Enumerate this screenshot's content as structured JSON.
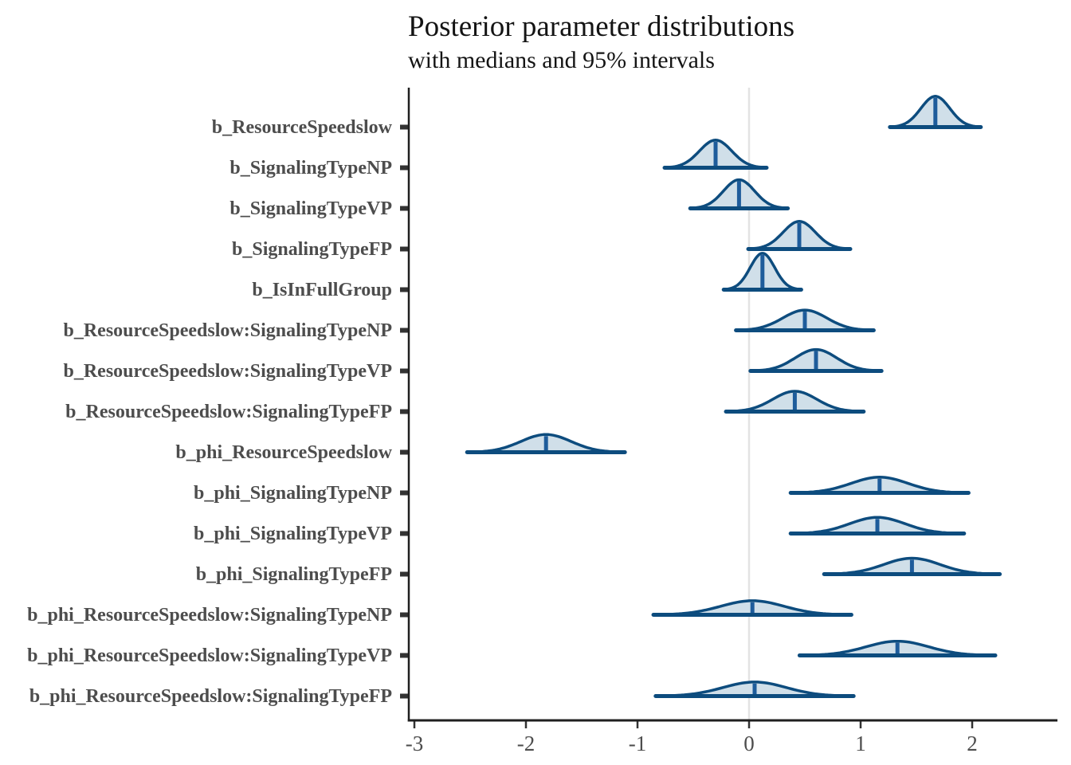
{
  "chart_data": {
    "type": "area",
    "subtype": "posterior-density-intervals",
    "title": "Posterior parameter distributions",
    "subtitle": "with medians and 95% intervals",
    "xlabel": "",
    "ylabel": "",
    "x_ticks": [
      -3,
      -2,
      -1,
      0,
      1,
      2
    ],
    "x_range": [
      -3.05,
      2.76
    ],
    "zero_reference_line": 0,
    "legend": "none",
    "grid": "zero-line-only",
    "style": {
      "fill_color": "#d0dfe9",
      "outline_color": "#0d4c7e",
      "median_color": "#1e5c9b",
      "gridline_color": "#e3e3e3",
      "axis_color": "#1f1f1f",
      "tick_color": "#333333",
      "tick_label_color": "#4d4d4d",
      "y_label_color": "#4d4d4d",
      "title_color": "#141414",
      "background": "#ffffff"
    },
    "parameters": [
      {
        "name": "b_ResourceSpeedslow",
        "median": 1.67,
        "sd": 0.13,
        "ci_low": 1.42,
        "ci_high": 1.92,
        "x_min": 1.27,
        "x_max": 2.07
      },
      {
        "name": "b_SignalingTypeNP",
        "median": -0.3,
        "sd": 0.145,
        "ci_low": -0.58,
        "ci_high": -0.02,
        "x_min": -0.75,
        "x_max": 0.15
      },
      {
        "name": "b_SignalingTypeVP",
        "median": -0.09,
        "sd": 0.14,
        "ci_low": -0.36,
        "ci_high": 0.18,
        "x_min": -0.52,
        "x_max": 0.34
      },
      {
        "name": "b_SignalingTypeFP",
        "median": 0.45,
        "sd": 0.145,
        "ci_low": 0.17,
        "ci_high": 0.73,
        "x_min": 0.0,
        "x_max": 0.9
      },
      {
        "name": "b_IsInFullGroup",
        "median": 0.12,
        "sd": 0.11,
        "ci_low": -0.1,
        "ci_high": 0.34,
        "x_min": -0.22,
        "x_max": 0.46
      },
      {
        "name": "b_ResourceSpeedslow:SignalingTypeNP",
        "median": 0.5,
        "sd": 0.198,
        "ci_low": 0.11,
        "ci_high": 0.89,
        "x_min": -0.11,
        "x_max": 1.11
      },
      {
        "name": "b_ResourceSpeedslow:SignalingTypeVP",
        "median": 0.6,
        "sd": 0.187,
        "ci_low": 0.23,
        "ci_high": 0.97,
        "x_min": 0.02,
        "x_max": 1.18
      },
      {
        "name": "b_ResourceSpeedslow:SignalingTypeFP",
        "median": 0.41,
        "sd": 0.197,
        "ci_low": 0.02,
        "ci_high": 0.8,
        "x_min": -0.2,
        "x_max": 1.02
      },
      {
        "name": "b_phi_ResourceSpeedslow",
        "median": -1.82,
        "sd": 0.226,
        "ci_low": -2.26,
        "ci_high": -1.38,
        "x_min": -2.52,
        "x_max": -1.12
      },
      {
        "name": "b_phi_SignalingTypeNP",
        "median": 1.17,
        "sd": 0.255,
        "ci_low": 0.67,
        "ci_high": 1.67,
        "x_min": 0.38,
        "x_max": 1.96
      },
      {
        "name": "b_phi_SignalingTypeVP",
        "median": 1.15,
        "sd": 0.248,
        "ci_low": 0.66,
        "ci_high": 1.64,
        "x_min": 0.38,
        "x_max": 1.92
      },
      {
        "name": "b_phi_SignalingTypeFP",
        "median": 1.46,
        "sd": 0.252,
        "ci_low": 0.97,
        "ci_high": 1.95,
        "x_min": 0.68,
        "x_max": 2.24
      },
      {
        "name": "b_phi_ResourceSpeedslow:SignalingTypeNP",
        "median": 0.03,
        "sd": 0.285,
        "ci_low": -0.53,
        "ci_high": 0.59,
        "x_min": -0.85,
        "x_max": 0.91
      },
      {
        "name": "b_phi_ResourceSpeedslow:SignalingTypeVP",
        "median": 1.33,
        "sd": 0.282,
        "ci_low": 0.78,
        "ci_high": 1.88,
        "x_min": 0.46,
        "x_max": 2.2
      },
      {
        "name": "b_phi_ResourceSpeedslow:SignalingTypeFP",
        "median": 0.05,
        "sd": 0.285,
        "ci_low": -0.51,
        "ci_high": 0.61,
        "x_min": -0.83,
        "x_max": 0.93
      }
    ]
  }
}
